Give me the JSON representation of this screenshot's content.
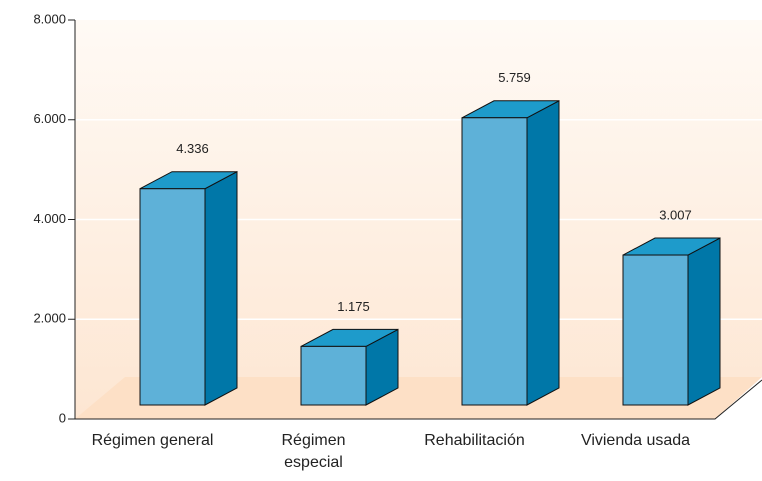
{
  "chart_data": {
    "type": "bar3d",
    "categories": [
      "Régimen general",
      "Régimen especial",
      "Rehabilitación",
      "Vivienda usada"
    ],
    "values": [
      4336,
      1175,
      5759,
      3007
    ],
    "value_labels": [
      "4.336",
      "1.175",
      "5.759",
      "3.007"
    ],
    "color": "#5eb1d8",
    "ylim": [
      0,
      8000
    ],
    "yticks": [
      {
        "value": 0,
        "label": "0"
      },
      {
        "value": 2000,
        "label": "2.000"
      },
      {
        "value": 4000,
        "label": "4.000"
      },
      {
        "value": 6000,
        "label": "6.000"
      },
      {
        "value": 8000,
        "label": "8.000"
      }
    ],
    "grid": true
  }
}
